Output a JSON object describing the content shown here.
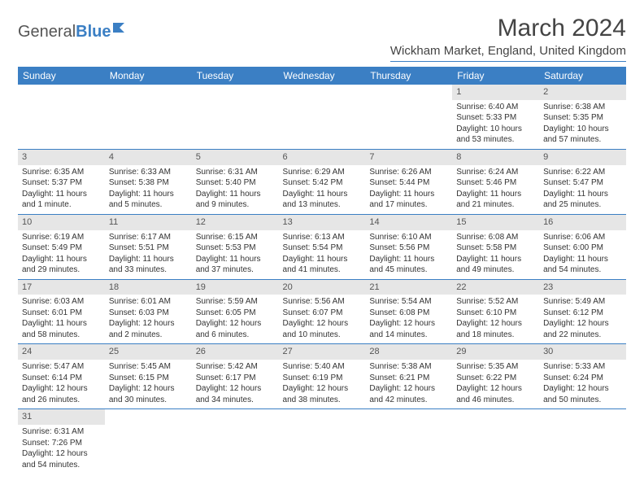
{
  "logo": {
    "text1": "General",
    "text2": "Blue"
  },
  "title": "March 2024",
  "location": "Wickham Market, England, United Kingdom",
  "colors": {
    "header_bg": "#3b7fc4",
    "header_text": "#ffffff",
    "daynum_bg": "#e6e6e6",
    "border": "#3b7fc4",
    "page_bg": "#ffffff",
    "text": "#333333"
  },
  "typography": {
    "title_fontsize": 30,
    "location_fontsize": 15,
    "dayhead_fontsize": 12,
    "cell_fontsize": 10
  },
  "dayHeaders": [
    "Sunday",
    "Monday",
    "Tuesday",
    "Wednesday",
    "Thursday",
    "Friday",
    "Saturday"
  ],
  "weeks": [
    [
      {
        "n": "",
        "sr": "",
        "ss": "",
        "dl": ""
      },
      {
        "n": "",
        "sr": "",
        "ss": "",
        "dl": ""
      },
      {
        "n": "",
        "sr": "",
        "ss": "",
        "dl": ""
      },
      {
        "n": "",
        "sr": "",
        "ss": "",
        "dl": ""
      },
      {
        "n": "",
        "sr": "",
        "ss": "",
        "dl": ""
      },
      {
        "n": "1",
        "sr": "Sunrise: 6:40 AM",
        "ss": "Sunset: 5:33 PM",
        "dl": "Daylight: 10 hours and 53 minutes."
      },
      {
        "n": "2",
        "sr": "Sunrise: 6:38 AM",
        "ss": "Sunset: 5:35 PM",
        "dl": "Daylight: 10 hours and 57 minutes."
      }
    ],
    [
      {
        "n": "3",
        "sr": "Sunrise: 6:35 AM",
        "ss": "Sunset: 5:37 PM",
        "dl": "Daylight: 11 hours and 1 minute."
      },
      {
        "n": "4",
        "sr": "Sunrise: 6:33 AM",
        "ss": "Sunset: 5:38 PM",
        "dl": "Daylight: 11 hours and 5 minutes."
      },
      {
        "n": "5",
        "sr": "Sunrise: 6:31 AM",
        "ss": "Sunset: 5:40 PM",
        "dl": "Daylight: 11 hours and 9 minutes."
      },
      {
        "n": "6",
        "sr": "Sunrise: 6:29 AM",
        "ss": "Sunset: 5:42 PM",
        "dl": "Daylight: 11 hours and 13 minutes."
      },
      {
        "n": "7",
        "sr": "Sunrise: 6:26 AM",
        "ss": "Sunset: 5:44 PM",
        "dl": "Daylight: 11 hours and 17 minutes."
      },
      {
        "n": "8",
        "sr": "Sunrise: 6:24 AM",
        "ss": "Sunset: 5:46 PM",
        "dl": "Daylight: 11 hours and 21 minutes."
      },
      {
        "n": "9",
        "sr": "Sunrise: 6:22 AM",
        "ss": "Sunset: 5:47 PM",
        "dl": "Daylight: 11 hours and 25 minutes."
      }
    ],
    [
      {
        "n": "10",
        "sr": "Sunrise: 6:19 AM",
        "ss": "Sunset: 5:49 PM",
        "dl": "Daylight: 11 hours and 29 minutes."
      },
      {
        "n": "11",
        "sr": "Sunrise: 6:17 AM",
        "ss": "Sunset: 5:51 PM",
        "dl": "Daylight: 11 hours and 33 minutes."
      },
      {
        "n": "12",
        "sr": "Sunrise: 6:15 AM",
        "ss": "Sunset: 5:53 PM",
        "dl": "Daylight: 11 hours and 37 minutes."
      },
      {
        "n": "13",
        "sr": "Sunrise: 6:13 AM",
        "ss": "Sunset: 5:54 PM",
        "dl": "Daylight: 11 hours and 41 minutes."
      },
      {
        "n": "14",
        "sr": "Sunrise: 6:10 AM",
        "ss": "Sunset: 5:56 PM",
        "dl": "Daylight: 11 hours and 45 minutes."
      },
      {
        "n": "15",
        "sr": "Sunrise: 6:08 AM",
        "ss": "Sunset: 5:58 PM",
        "dl": "Daylight: 11 hours and 49 minutes."
      },
      {
        "n": "16",
        "sr": "Sunrise: 6:06 AM",
        "ss": "Sunset: 6:00 PM",
        "dl": "Daylight: 11 hours and 54 minutes."
      }
    ],
    [
      {
        "n": "17",
        "sr": "Sunrise: 6:03 AM",
        "ss": "Sunset: 6:01 PM",
        "dl": "Daylight: 11 hours and 58 minutes."
      },
      {
        "n": "18",
        "sr": "Sunrise: 6:01 AM",
        "ss": "Sunset: 6:03 PM",
        "dl": "Daylight: 12 hours and 2 minutes."
      },
      {
        "n": "19",
        "sr": "Sunrise: 5:59 AM",
        "ss": "Sunset: 6:05 PM",
        "dl": "Daylight: 12 hours and 6 minutes."
      },
      {
        "n": "20",
        "sr": "Sunrise: 5:56 AM",
        "ss": "Sunset: 6:07 PM",
        "dl": "Daylight: 12 hours and 10 minutes."
      },
      {
        "n": "21",
        "sr": "Sunrise: 5:54 AM",
        "ss": "Sunset: 6:08 PM",
        "dl": "Daylight: 12 hours and 14 minutes."
      },
      {
        "n": "22",
        "sr": "Sunrise: 5:52 AM",
        "ss": "Sunset: 6:10 PM",
        "dl": "Daylight: 12 hours and 18 minutes."
      },
      {
        "n": "23",
        "sr": "Sunrise: 5:49 AM",
        "ss": "Sunset: 6:12 PM",
        "dl": "Daylight: 12 hours and 22 minutes."
      }
    ],
    [
      {
        "n": "24",
        "sr": "Sunrise: 5:47 AM",
        "ss": "Sunset: 6:14 PM",
        "dl": "Daylight: 12 hours and 26 minutes."
      },
      {
        "n": "25",
        "sr": "Sunrise: 5:45 AM",
        "ss": "Sunset: 6:15 PM",
        "dl": "Daylight: 12 hours and 30 minutes."
      },
      {
        "n": "26",
        "sr": "Sunrise: 5:42 AM",
        "ss": "Sunset: 6:17 PM",
        "dl": "Daylight: 12 hours and 34 minutes."
      },
      {
        "n": "27",
        "sr": "Sunrise: 5:40 AM",
        "ss": "Sunset: 6:19 PM",
        "dl": "Daylight: 12 hours and 38 minutes."
      },
      {
        "n": "28",
        "sr": "Sunrise: 5:38 AM",
        "ss": "Sunset: 6:21 PM",
        "dl": "Daylight: 12 hours and 42 minutes."
      },
      {
        "n": "29",
        "sr": "Sunrise: 5:35 AM",
        "ss": "Sunset: 6:22 PM",
        "dl": "Daylight: 12 hours and 46 minutes."
      },
      {
        "n": "30",
        "sr": "Sunrise: 5:33 AM",
        "ss": "Sunset: 6:24 PM",
        "dl": "Daylight: 12 hours and 50 minutes."
      }
    ],
    [
      {
        "n": "31",
        "sr": "Sunrise: 6:31 AM",
        "ss": "Sunset: 7:26 PM",
        "dl": "Daylight: 12 hours and 54 minutes."
      },
      {
        "n": "",
        "sr": "",
        "ss": "",
        "dl": ""
      },
      {
        "n": "",
        "sr": "",
        "ss": "",
        "dl": ""
      },
      {
        "n": "",
        "sr": "",
        "ss": "",
        "dl": ""
      },
      {
        "n": "",
        "sr": "",
        "ss": "",
        "dl": ""
      },
      {
        "n": "",
        "sr": "",
        "ss": "",
        "dl": ""
      },
      {
        "n": "",
        "sr": "",
        "ss": "",
        "dl": ""
      }
    ]
  ]
}
